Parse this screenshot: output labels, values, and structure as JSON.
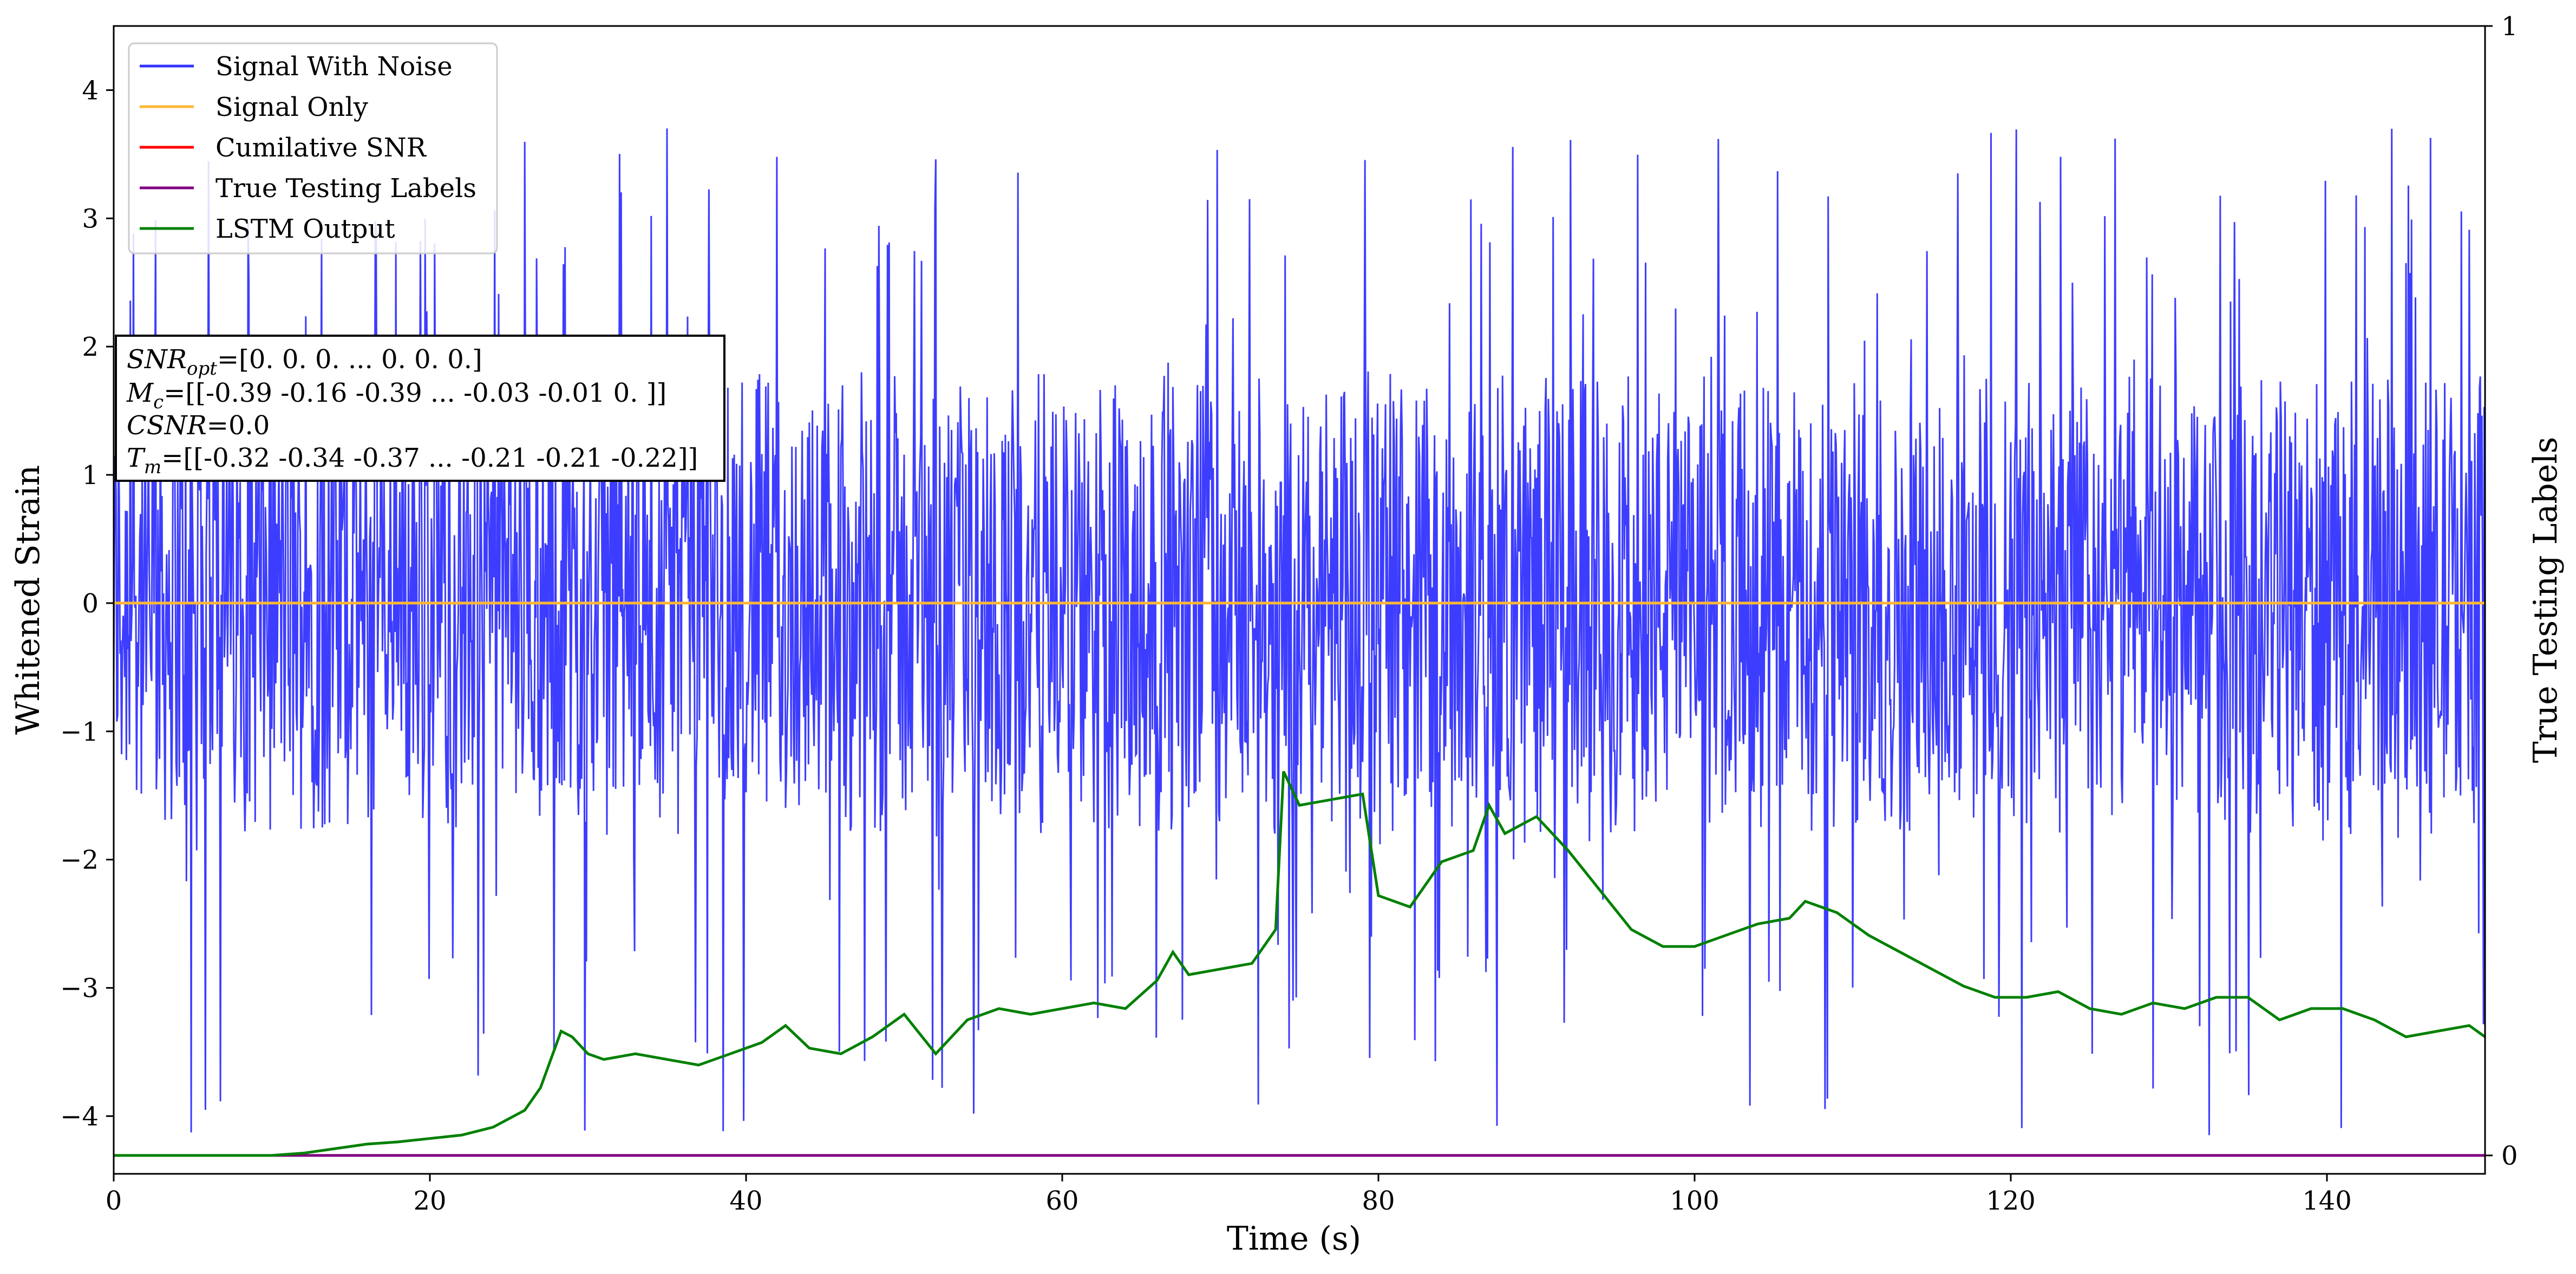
{
  "chart_data": {
    "type": "line",
    "title": "",
    "xlabel": "Time (s)",
    "ylabel": "Whitened Strain",
    "y2label": "True Testing Labels",
    "xlim": [
      0,
      150
    ],
    "ylim": [
      -4.45,
      4.5
    ],
    "y2lim": [
      0,
      1
    ],
    "xticks": [
      0,
      20,
      40,
      60,
      80,
      100,
      120,
      140
    ],
    "yticks": [
      -4,
      -3,
      -2,
      -1,
      0,
      1,
      2,
      3,
      4
    ],
    "y2ticks": [
      0,
      1
    ],
    "ytick_labels": [
      "−4",
      "−3",
      "−2",
      "−1",
      "0",
      "1",
      "2",
      "3",
      "4"
    ],
    "grid": false,
    "legend_position": "top-left",
    "legend": [
      {
        "name": "Signal With Noise",
        "color": "#3333ff"
      },
      {
        "name": "Signal Only",
        "color": "#ffb733"
      },
      {
        "name": "Cumilative SNR",
        "color": "#ff0000"
      },
      {
        "name": "True Testing Labels",
        "color": "#800080"
      },
      {
        "name": "LSTM Output",
        "color": "#008000"
      }
    ],
    "annotation": {
      "snr": {
        "sym": "SNR",
        "sub": "opt",
        "value": "=[0. 0. 0. ... 0. 0. 0.]"
      },
      "mc": {
        "sym": "M",
        "sub": "c",
        "value": "=[[-0.39 -0.16 -0.39 ... -0.03 -0.01  0.  ]]"
      },
      "csnr": {
        "sym": "CSNR",
        "value": "=0.0"
      },
      "tm": {
        "sym": "T",
        "sub": "m",
        "value": "=[[-0.32 -0.34 -0.37 ... -0.21 -0.21 -0.22]]"
      }
    },
    "series": [
      {
        "name": "Signal With Noise",
        "color": "#3333ff",
        "kind": "noise",
        "x_range": [
          0,
          150
        ],
        "band": [
          -1.5,
          1.8
        ],
        "max_peak": 3.75,
        "min_peak": -4.15
      },
      {
        "name": "Signal Only",
        "color": "#ffb733",
        "x": [
          0,
          150
        ],
        "y": [
          0,
          0
        ]
      },
      {
        "name": "True Testing Labels",
        "color": "#800080",
        "axis": "y2",
        "x": [
          0,
          150
        ],
        "y": [
          0,
          0
        ]
      },
      {
        "name": "LSTM Output",
        "color": "#008000",
        "axis": "y2",
        "x": [
          0,
          10,
          12,
          14,
          16,
          18,
          20,
          22,
          24,
          26,
          27,
          28.3,
          29,
          30,
          31,
          33,
          35,
          37,
          39,
          41,
          42.5,
          44,
          46,
          48,
          50,
          52,
          54,
          56,
          58,
          60,
          62,
          64,
          66,
          67,
          68,
          70,
          72,
          73.5,
          74,
          75,
          77,
          79,
          80,
          82,
          84,
          86,
          87,
          88,
          90,
          92,
          94,
          96,
          98,
          100,
          102,
          104,
          106,
          107,
          109,
          111,
          113,
          115,
          117,
          119,
          121,
          123,
          125,
          127,
          129,
          131,
          133,
          135,
          137,
          139,
          141,
          143,
          145,
          147,
          149,
          150
        ],
        "y": [
          0,
          0,
          0.002,
          0.006,
          0.01,
          0.012,
          0.015,
          0.018,
          0.025,
          0.04,
          0.06,
          0.11,
          0.105,
          0.09,
          0.085,
          0.09,
          0.085,
          0.08,
          0.09,
          0.1,
          0.115,
          0.095,
          0.09,
          0.105,
          0.125,
          0.09,
          0.12,
          0.13,
          0.125,
          0.13,
          0.135,
          0.13,
          0.155,
          0.18,
          0.16,
          0.165,
          0.17,
          0.2,
          0.34,
          0.31,
          0.315,
          0.32,
          0.23,
          0.22,
          0.26,
          0.27,
          0.31,
          0.285,
          0.3,
          0.27,
          0.235,
          0.2,
          0.185,
          0.185,
          0.195,
          0.205,
          0.21,
          0.225,
          0.215,
          0.195,
          0.18,
          0.165,
          0.15,
          0.14,
          0.14,
          0.145,
          0.13,
          0.125,
          0.135,
          0.13,
          0.14,
          0.14,
          0.12,
          0.13,
          0.13,
          0.12,
          0.105,
          0.11,
          0.115,
          0.105
        ]
      }
    ]
  }
}
